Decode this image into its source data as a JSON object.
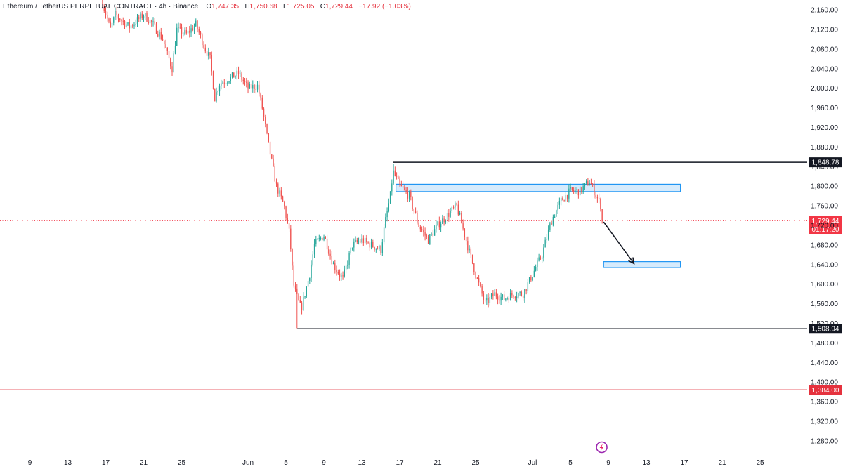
{
  "legend": {
    "symbol": "Ethereum / TetherUS PERPETUAL CONTRACT · 4h · Binance",
    "o_label": "O",
    "o": "1,747.35",
    "h_label": "H",
    "h": "1,750.68",
    "l_label": "L",
    "l": "1,725.05",
    "c_label": "C",
    "c": "1,729.44",
    "change": "−17.92 (−1.03%)"
  },
  "colors": {
    "up": "#26a69a",
    "down": "#ef5350",
    "zone_fill": "#cfe8fb",
    "zone_stroke": "#2196f3",
    "support_red": "#e5323e",
    "level_black": "#131722",
    "current_price": "#f23645"
  },
  "chart_data": {
    "type": "candlestick",
    "timeframe": "4h",
    "y_ticks": [
      2160,
      2120,
      2080,
      2040,
      2000,
      1960,
      1920,
      1880,
      1840,
      1800,
      1760,
      1720,
      1680,
      1640,
      1600,
      1560,
      1520,
      1480,
      1440,
      1400,
      1360,
      1320,
      1280
    ],
    "y_tick_labels": [
      "2,160.00",
      "2,120.00",
      "2,080.00",
      "2,040.00",
      "2,000.00",
      "1,960.00",
      "1,920.00",
      "1,880.00",
      "1,840.00",
      "1,800.00",
      "1,760.00",
      "1,720.00",
      "1,680.00",
      "1,640.00",
      "1,600.00",
      "1,560.00",
      "1,520.00",
      "1,480.00",
      "1,440.00",
      "1,400.00",
      "1,360.00",
      "1,320.00",
      "1,280.00"
    ],
    "x_ticks": [
      {
        "label": "9",
        "day": -23
      },
      {
        "label": "13",
        "day": -19
      },
      {
        "label": "17",
        "day": -15
      },
      {
        "label": "21",
        "day": -11
      },
      {
        "label": "25",
        "day": -7
      },
      {
        "label": "Jun",
        "day": 0
      },
      {
        "label": "5",
        "day": 4
      },
      {
        "label": "9",
        "day": 8
      },
      {
        "label": "13",
        "day": 12
      },
      {
        "label": "17",
        "day": 16
      },
      {
        "label": "21",
        "day": 20
      },
      {
        "label": "25",
        "day": 24
      },
      {
        "label": "Jul",
        "day": 30
      },
      {
        "label": "5",
        "day": 34
      },
      {
        "label": "9",
        "day": 38
      },
      {
        "label": "13",
        "day": 42
      },
      {
        "label": "17",
        "day": 46
      },
      {
        "label": "21",
        "day": 50
      },
      {
        "label": "25",
        "day": 54
      }
    ],
    "price_path": [
      [
        -15.5,
        2185
      ],
      [
        -14.5,
        2120
      ],
      [
        -14.0,
        2150
      ],
      [
        -12.5,
        2125
      ],
      [
        -11.0,
        2150
      ],
      [
        -10.0,
        2130
      ],
      [
        -9.0,
        2100
      ],
      [
        -8.0,
        2040
      ],
      [
        -7.5,
        2120
      ],
      [
        -6.5,
        2110
      ],
      [
        -5.5,
        2130
      ],
      [
        -4.5,
        2080
      ],
      [
        -4.0,
        2060
      ],
      [
        -3.5,
        1980
      ],
      [
        -3.0,
        2010
      ],
      [
        -2.0,
        2020
      ],
      [
        -1.0,
        2030
      ],
      [
        0.0,
        2000
      ],
      [
        1.0,
        2005
      ],
      [
        1.5,
        1960
      ],
      [
        2.2,
        1880
      ],
      [
        3.0,
        1800
      ],
      [
        3.8,
        1760
      ],
      [
        4.4,
        1700
      ],
      [
        4.8,
        1600
      ],
      [
        5.2,
        1570
      ],
      [
        5.6,
        1550
      ],
      [
        6.0,
        1580
      ],
      [
        6.5,
        1620
      ],
      [
        7.0,
        1680
      ],
      [
        8.0,
        1700
      ],
      [
        9.0,
        1640
      ],
      [
        10.0,
        1610
      ],
      [
        11.0,
        1680
      ],
      [
        12.0,
        1690
      ],
      [
        13.0,
        1680
      ],
      [
        14.0,
        1670
      ],
      [
        14.5,
        1730
      ],
      [
        15.0,
        1780
      ],
      [
        15.3,
        1830
      ],
      [
        16.0,
        1800
      ],
      [
        17.0,
        1780
      ],
      [
        18.0,
        1720
      ],
      [
        19.0,
        1690
      ],
      [
        20.0,
        1720
      ],
      [
        21.0,
        1740
      ],
      [
        22.0,
        1760
      ],
      [
        23.0,
        1690
      ],
      [
        24.0,
        1620
      ],
      [
        25.0,
        1560
      ],
      [
        26.0,
        1580
      ],
      [
        27.0,
        1570
      ],
      [
        28.0,
        1580
      ],
      [
        29.0,
        1580
      ],
      [
        30.0,
        1620
      ],
      [
        31.0,
        1660
      ],
      [
        32.0,
        1730
      ],
      [
        33.0,
        1770
      ],
      [
        34.0,
        1790
      ],
      [
        35.0,
        1790
      ],
      [
        36.0,
        1810
      ],
      [
        36.5,
        1790
      ],
      [
        37.2,
        1760
      ],
      [
        37.5,
        1729.44
      ]
    ],
    "candle_step_days": 0.1667,
    "volatility": 11,
    "swing_high": {
      "day": 15.3,
      "price": 1845
    },
    "swing_low": {
      "day": 5.2,
      "price": 1510
    },
    "hlines": [
      {
        "name": "resistance",
        "price": 1848.78,
        "label": "1,848.78",
        "from_day": 15.3,
        "color": "#131722"
      },
      {
        "name": "support",
        "price": 1508.94,
        "label": "1,508.94",
        "from_day": 5.2,
        "color": "#131722"
      },
      {
        "name": "lower-support",
        "price": 1384.0,
        "label": "1,384.00",
        "from_day": -30,
        "color": "#e5323e"
      }
    ],
    "zones": [
      {
        "name": "resistance-zone",
        "from_day": 15.6,
        "to_day": 45.6,
        "top": 1804,
        "bottom": 1789
      },
      {
        "name": "target-zone",
        "from_day": 37.5,
        "to_day": 45.6,
        "top": 1646,
        "bottom": 1634
      }
    ],
    "arrow": {
      "from_day": 37.5,
      "from_price": 1727,
      "to_day": 40.7,
      "to_price": 1642
    },
    "current_price": {
      "price": 1729.44,
      "label": "1,729.44",
      "countdown": "01:17:20"
    },
    "marker_icon": "lightning-icon"
  }
}
